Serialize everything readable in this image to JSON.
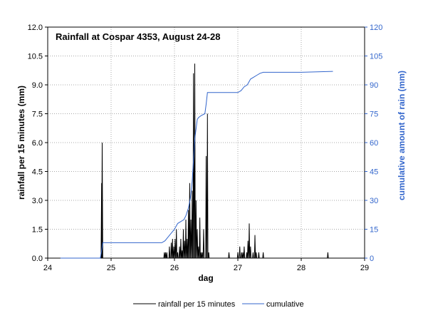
{
  "chart_data": {
    "type": "line",
    "title": "Rainfall at Cospar 4353, August 24-28",
    "xlabel": "dag",
    "ylabel": "rainfall per 15 minutes (mm)",
    "y2label": "cumulative amount of rain (mm)",
    "xlim": [
      24,
      29
    ],
    "ylim": [
      0,
      12
    ],
    "y2lim": [
      0,
      120
    ],
    "xticks": [
      "24",
      "25",
      "26",
      "27",
      "28",
      "29"
    ],
    "yticks": [
      "0.0",
      "1.5",
      "3.0",
      "4.5",
      "6.0",
      "7.5",
      "9.0",
      "10.5",
      "12.0"
    ],
    "y2ticks": [
      "0",
      "15",
      "30",
      "45",
      "60",
      "75",
      "90",
      "105",
      "120"
    ],
    "legend_position": "bottom",
    "grid": "dotted",
    "colors": {
      "rainfall": "#000000",
      "cumulative": "#3366cc",
      "axis2": "#3366cc"
    },
    "series": [
      {
        "name": "rainfall per 15 minutes",
        "axis": "left",
        "color": "#000000",
        "x": [
          24.84,
          24.85,
          24.86,
          24.87,
          25.84,
          25.86,
          25.88,
          25.92,
          25.95,
          25.97,
          25.99,
          26.01,
          26.03,
          26.05,
          26.08,
          26.1,
          26.12,
          26.14,
          26.16,
          26.18,
          26.2,
          26.22,
          26.24,
          26.26,
          26.28,
          26.3,
          26.32,
          26.34,
          26.36,
          26.38,
          26.4,
          26.42,
          26.44,
          26.46,
          26.5,
          26.52,
          26.54,
          26.86,
          27.0,
          27.03,
          27.06,
          27.08,
          27.1,
          27.14,
          27.16,
          27.18,
          27.2,
          27.24,
          27.27,
          27.29,
          27.33,
          27.4,
          28.42
        ],
        "y": [
          0,
          3.9,
          6.0,
          0,
          0.3,
          0.3,
          0.3,
          0.6,
          0.8,
          1.0,
          0.6,
          1.0,
          1.5,
          0.3,
          0.6,
          1.0,
          0.4,
          1.5,
          0.9,
          2.0,
          1.0,
          2.5,
          3.9,
          2.0,
          3.5,
          9.6,
          10.1,
          3.0,
          1.5,
          0.6,
          2.1,
          0.3,
          0.3,
          1.5,
          5.3,
          7.5,
          0.3,
          0.3,
          0.3,
          0.6,
          0.3,
          0.3,
          0.6,
          0.3,
          0.9,
          1.8,
          0.6,
          0.3,
          1.2,
          0.3,
          0.3,
          0.3,
          0.3
        ]
      },
      {
        "name": "cumulative",
        "axis": "right",
        "color": "#3366cc",
        "x": [
          24.2,
          24.83,
          24.85,
          24.87,
          25.8,
          25.85,
          25.9,
          25.95,
          26.0,
          26.05,
          26.1,
          26.15,
          26.18,
          26.2,
          26.22,
          26.25,
          26.28,
          26.3,
          26.32,
          26.34,
          26.36,
          26.38,
          26.4,
          26.42,
          26.48,
          26.5,
          26.52,
          26.54,
          26.6,
          26.8,
          27.0,
          27.05,
          27.1,
          27.15,
          27.2,
          27.25,
          27.3,
          27.35,
          27.4,
          28.0,
          28.5
        ],
        "y": [
          0,
          0,
          4,
          8,
          8,
          9,
          11,
          13,
          15,
          18,
          19,
          20,
          22,
          24,
          26,
          31,
          40,
          51,
          62,
          67,
          72,
          73,
          73.5,
          74,
          75,
          80,
          86,
          86,
          86,
          86,
          86,
          87,
          89,
          90,
          93,
          94,
          95,
          96,
          96.5,
          96.5,
          97
        ]
      }
    ]
  }
}
